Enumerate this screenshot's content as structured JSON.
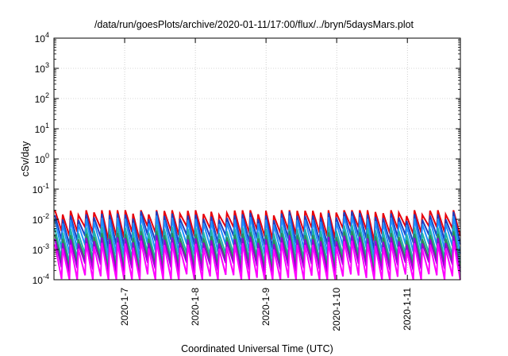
{
  "chart_data": {
    "type": "line",
    "title": "/data/run/goesPlots/archive/2020-01-11/17:00/flux/../bryn/5daysMars.plot",
    "xlabel": "Coordinated Universal Time (UTC)",
    "ylabel": "cSv/day",
    "yscale": "log",
    "ylim": [
      0.0001,
      10000
    ],
    "xlim_days_from_2020_1_7": [
      -1.0,
      4.75
    ],
    "grid": true,
    "x_ticks": [
      "2020-1-7",
      "2020-1-8",
      "2020-1-9",
      "2020-1-10",
      "2020-1-11"
    ],
    "y_ticks": [
      {
        "base": "10",
        "exp": "-4",
        "value": 0.0001
      },
      {
        "base": "10",
        "exp": "-3",
        "value": 0.001
      },
      {
        "base": "10",
        "exp": "-2",
        "value": 0.01
      },
      {
        "base": "10",
        "exp": "-1",
        "value": 0.1
      },
      {
        "base": "10",
        "exp": "0",
        "value": 1
      },
      {
        "base": "10",
        "exp": "1",
        "value": 10
      },
      {
        "base": "10",
        "exp": "2",
        "value": 100
      },
      {
        "base": "10",
        "exp": "3",
        "value": 1000
      },
      {
        "base": "10",
        "exp": "4",
        "value": 10000
      }
    ],
    "series_pattern": {
      "description": "sawtooth, ~9 cycles per day, sharp rise then gradual decay",
      "cycles_per_day": 9
    },
    "series": [
      {
        "color": "#e8000b",
        "peak": 0.016,
        "trough": 0.0035
      },
      {
        "color": "#1f3fbf",
        "peak": 0.011,
        "trough": 0.0018
      },
      {
        "color": "#1e90ff",
        "peak": 0.008,
        "trough": 0.0009
      },
      {
        "color": "#20b2aa",
        "peak": 0.004,
        "trough": 0.00045
      },
      {
        "color": "#2e8b57",
        "peak": 0.0025,
        "trough": 0.0003
      },
      {
        "color": "#9400d3",
        "peak": 0.0018,
        "trough": 0.00022
      },
      {
        "color": "#ff00ff",
        "peak": 0.0012,
        "trough": 9e-05
      }
    ]
  }
}
